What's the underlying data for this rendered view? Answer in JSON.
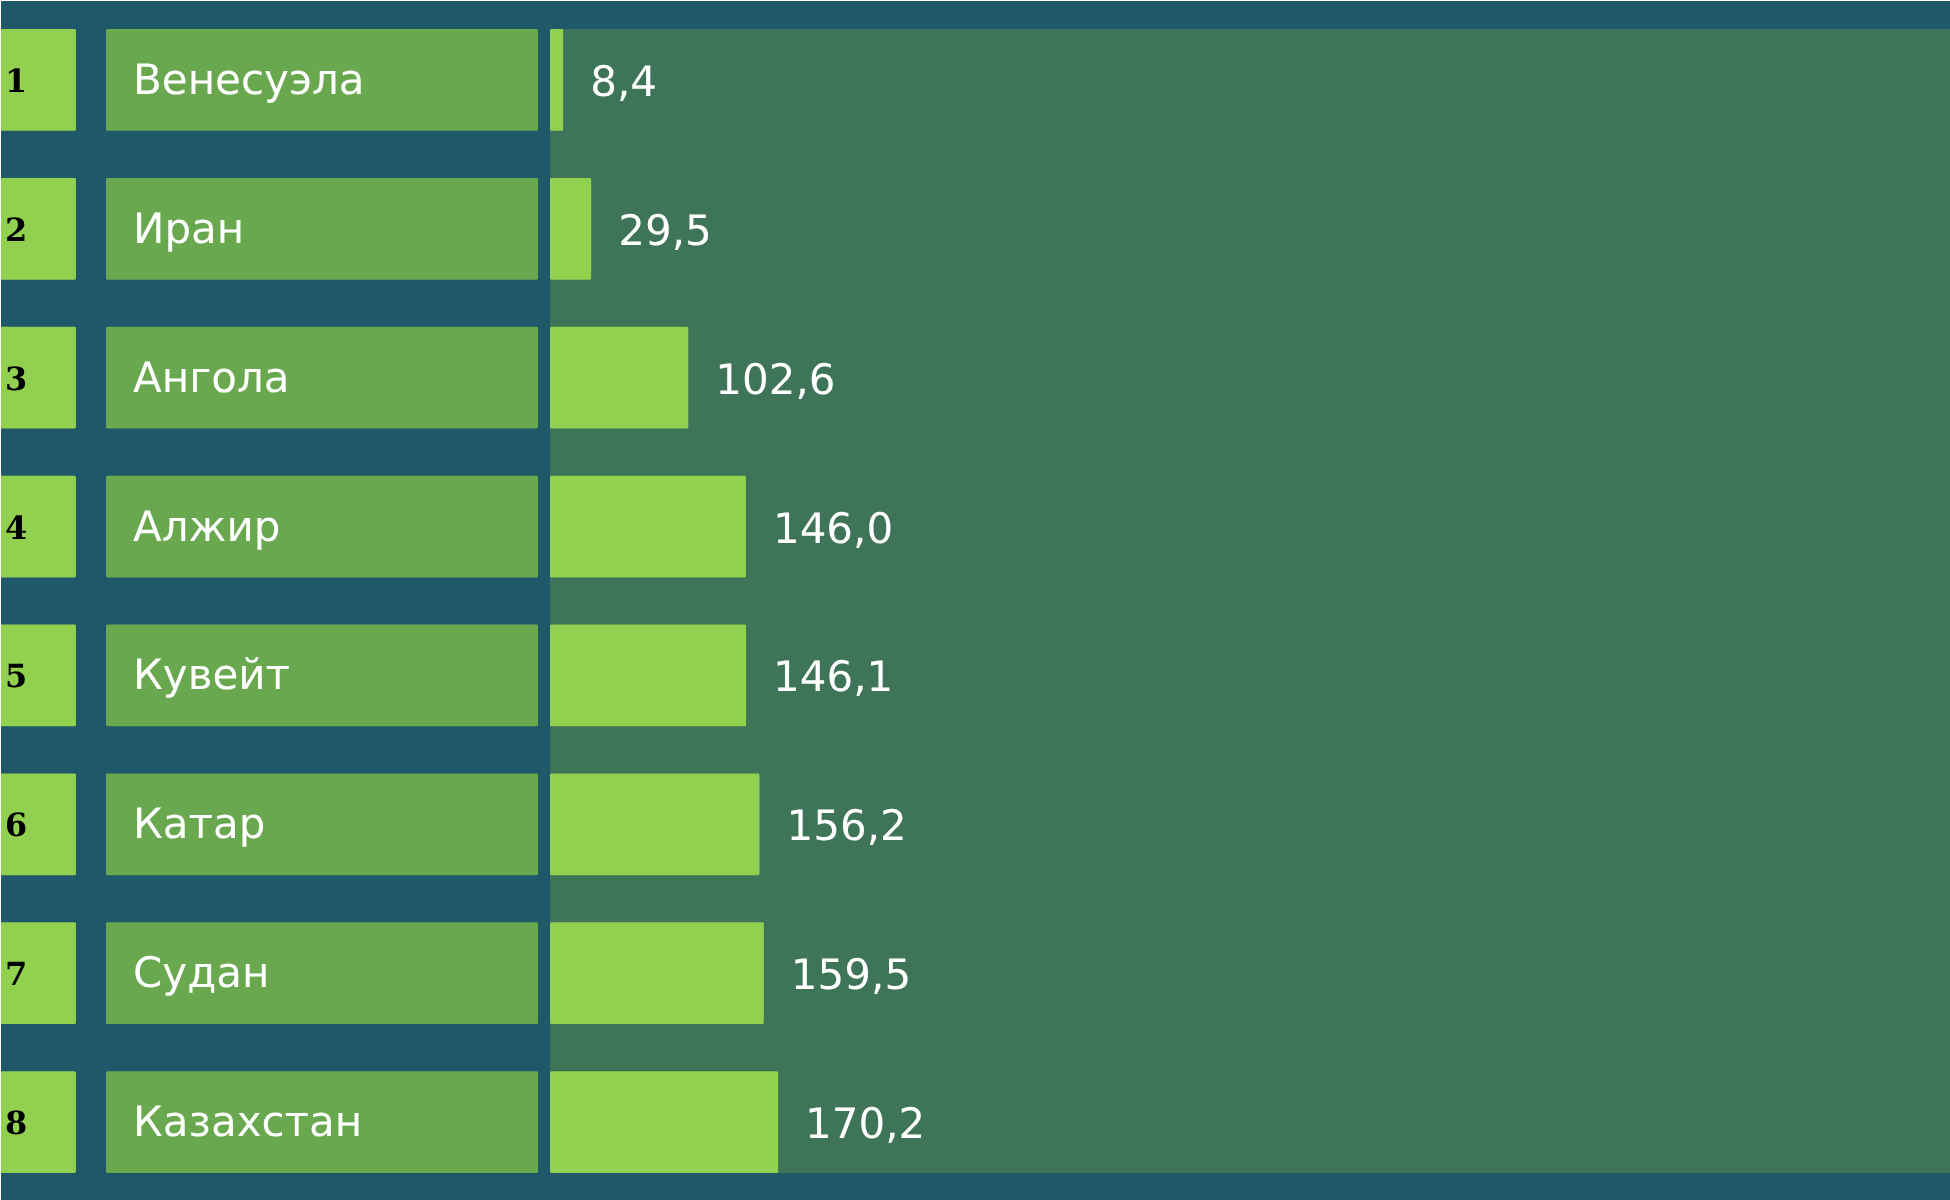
{
  "chart_data": {
    "type": "bar",
    "orientation": "horizontal",
    "categories": [
      "Венесуэла",
      "Иран",
      "Ангола",
      "Алжир",
      "Кувейт",
      "Катар",
      "Судан",
      "Казахстан"
    ],
    "values": [
      8.4,
      29.5,
      102.6,
      146.0,
      146.1,
      156.2,
      159.5,
      170.2
    ],
    "value_labels": [
      "8,4",
      "29,5",
      "102,6",
      "146,0",
      "146,1",
      "156,2",
      "159,5",
      "170,2"
    ],
    "color": "#92d050",
    "annotations": [
      "1",
      "2",
      "3",
      "4",
      "5",
      "6",
      "7",
      "8"
    ],
    "xlim": [
      0,
      1054
    ],
    "bands": [
      {
        "axis": "x",
        "from": 0,
        "to": 1054,
        "color": "#3e7457"
      }
    ],
    "grid": false
  }
}
